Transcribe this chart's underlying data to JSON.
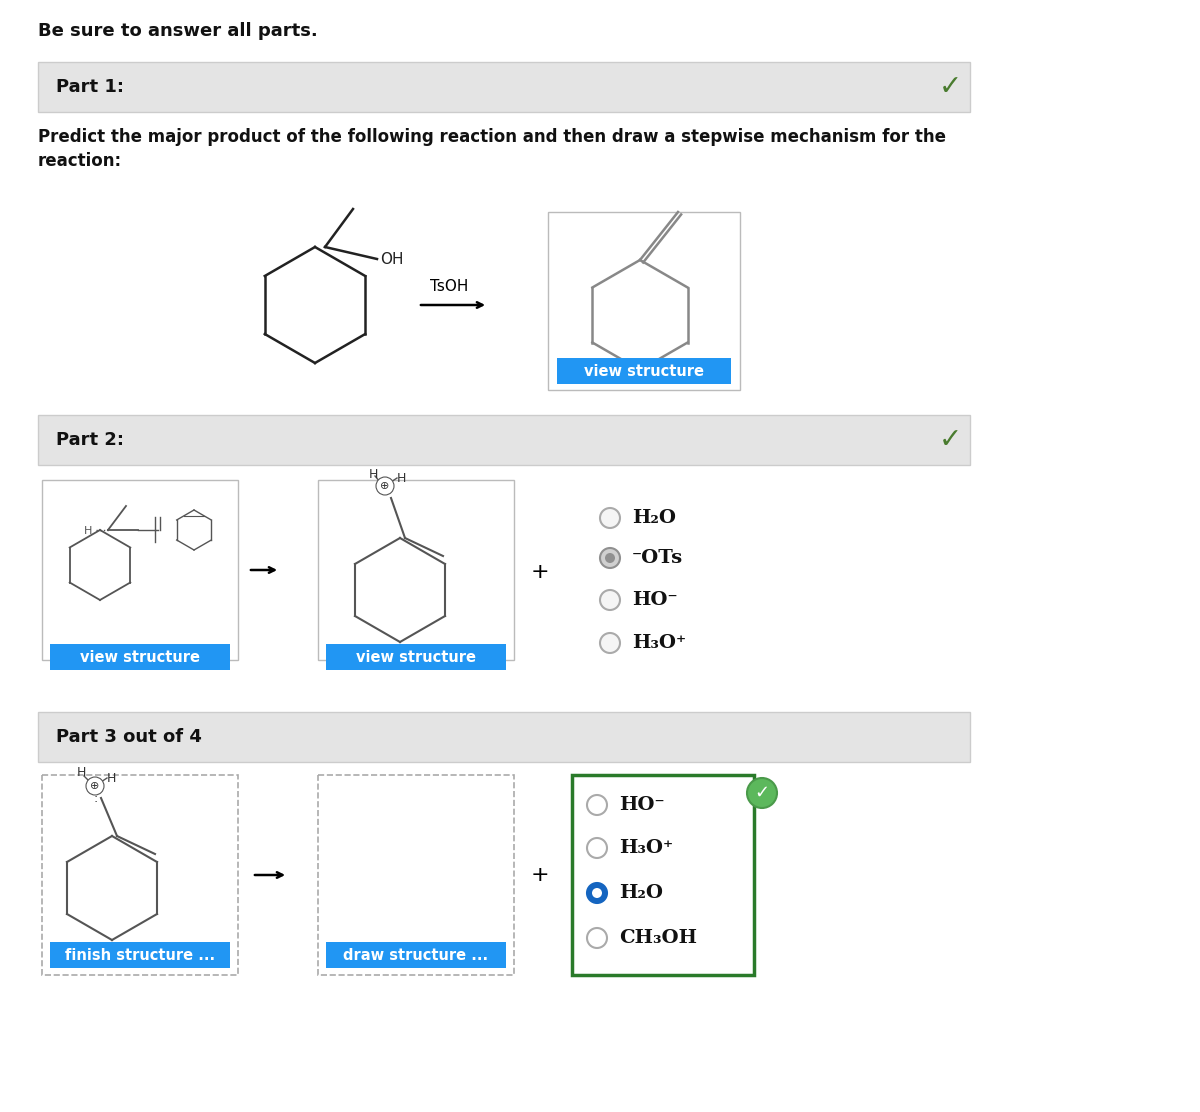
{
  "bg_color": "#ffffff",
  "header_text": "Be sure to answer all parts.",
  "part1_label": "Part 1:",
  "part1_desc_line1": "Predict the major product of the following reaction and then draw a stepwise mechanism for the",
  "part1_desc_line2": "reaction:",
  "part2_label": "Part 2:",
  "part3_label": "Part 3 out of 4",
  "section_bg": "#e4e4e4",
  "section_border": "#cccccc",
  "blue_btn_color": "#2196F3",
  "green_check_dark": "#4a7c2f",
  "part2_radio_options": [
    "H₂O",
    "⁻OTs",
    "HO⁻",
    "H₃O⁺"
  ],
  "part2_selected": 1,
  "part3_radio_options": [
    "HO⁻",
    "H₃O⁺",
    "H₂O",
    "CH₃OH"
  ],
  "part3_selected": 2,
  "part3_box_border": "#2a7a2a",
  "tsoh_text": "TsOH"
}
